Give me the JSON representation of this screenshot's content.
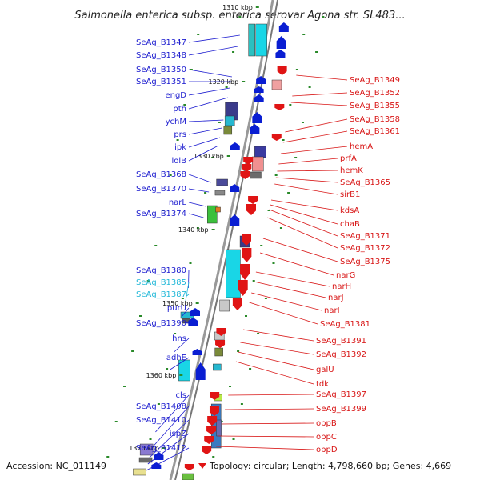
{
  "title": "Salmonella enterica subsp. enterica serovar Agona str. SL483...",
  "footer": {
    "accession": "Accession: NC_011149",
    "topology": "Topology: circular; Length: 4,798,660 bp; Genes: 4,669"
  },
  "colors": {
    "left_label": "#1b1bcf",
    "left_label_light": "#22b8d8",
    "right_label": "#d81515",
    "plus_strand": "#0a1ed2",
    "minus_strand": "#e01414",
    "backbone": "#888888",
    "tick": "#2a8a2a"
  },
  "scale_marks": [
    "1310 kbp",
    "1320 kbp",
    "1330 kbp",
    "1340 kbp",
    "1350 kbp",
    "1360 kbp",
    "1370 kbp"
  ],
  "left_labels": [
    "SeAg_B1347",
    "SeAg_B1348",
    "SeAg_B1350",
    "SeAg_B1351",
    "engD",
    "pth",
    "ychM",
    "prs",
    "ipk",
    "lolB",
    "SeAg_B1368",
    "SeAg_B1370",
    "narL",
    "SeAg_B1374",
    "SeAg_B1380",
    "SeAg_B1385",
    "SeAg_B1387",
    "purU",
    "SeAg_B1390",
    "hns",
    "adhE",
    "cls",
    "SeAg_B1408",
    "SeAg_B1410",
    "ispZ",
    "SeAg_B1412"
  ],
  "right_labels": [
    "SeAg_B1349",
    "SeAg_B1352",
    "SeAg_B1355",
    "SeAg_B1358",
    "SeAg_B1361",
    "hemA",
    "prfA",
    "hemK",
    "SeAg_B1365",
    "sirB1",
    "kdsA",
    "chaB",
    "SeAg_B1371",
    "SeAg_B1372",
    "SeAg_B1375",
    "narG",
    "narH",
    "narJ",
    "narI",
    "SeAg_B1381",
    "SeAg_B1391",
    "SeAg_B1392",
    "galU",
    "tdk",
    "SeAg_B1397",
    "SeAg_B1399",
    "oppB",
    "oppC",
    "oppD"
  ]
}
